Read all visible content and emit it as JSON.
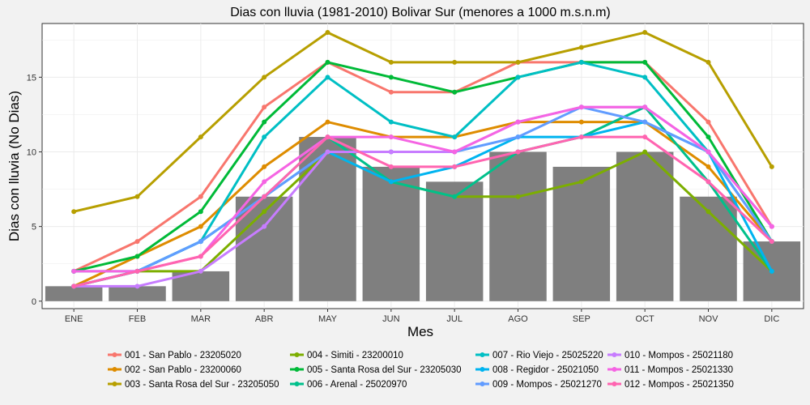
{
  "chart_data": {
    "type": "bar",
    "title": "Dias con lluvia (1981-2010) Bolivar Sur (menores a 1000 m.s.n.m)",
    "xlabel": "Mes",
    "ylabel": "Dias con lluvia (No Dias)",
    "categories": [
      "ENE",
      "FEB",
      "MAR",
      "ABR",
      "MAY",
      "JUN",
      "JUL",
      "AGO",
      "SEP",
      "OCT",
      "NOV",
      "DIC"
    ],
    "ylim": [
      -0.5,
      18.6
    ],
    "yticks": [
      0,
      5,
      10,
      15
    ],
    "bar_values": [
      1,
      1,
      2,
      7,
      11,
      9,
      8,
      10,
      9,
      10,
      7,
      4
    ],
    "bar_color": "#7f7f7f",
    "grid": true,
    "legend_position": "bottom",
    "series": [
      {
        "name": "001 - San Pablo - 23205020",
        "color": "#F8766D",
        "values": [
          2,
          4,
          7,
          13,
          16,
          14,
          14,
          16,
          16,
          16,
          12,
          5
        ]
      },
      {
        "name": "002 - San Pablo - 23200060",
        "color": "#DE8C00",
        "values": [
          1,
          3,
          5,
          9,
          12,
          11,
          11,
          12,
          12,
          12,
          9,
          4
        ]
      },
      {
        "name": "003 - Santa Rosa del Sur - 23205050",
        "color": "#B79F00",
        "values": [
          6,
          7,
          11,
          15,
          18,
          16,
          16,
          16,
          17,
          18,
          16,
          9
        ]
      },
      {
        "name": "004 - Simiti - 23200010",
        "color": "#7CAE00",
        "values": [
          1,
          2,
          2,
          6,
          10,
          8,
          7,
          7,
          8,
          10,
          6,
          2
        ]
      },
      {
        "name": "005 - Santa Rosa del Sur - 23205030",
        "color": "#00BA38",
        "values": [
          2,
          3,
          6,
          12,
          16,
          15,
          14,
          15,
          16,
          16,
          11,
          4
        ]
      },
      {
        "name": "006 - Arenal - 25020970",
        "color": "#00C08B",
        "values": [
          1,
          2,
          4,
          7,
          11,
          8,
          7,
          10,
          11,
          13,
          8,
          2
        ]
      },
      {
        "name": "007 - Rio Viejo - 25025220",
        "color": "#00BFC4",
        "values": [
          2,
          2,
          4,
          11,
          15,
          12,
          11,
          15,
          16,
          15,
          10,
          4
        ]
      },
      {
        "name": "008 - Regidor - 25021050",
        "color": "#00B4F0",
        "values": [
          1,
          2,
          4,
          7,
          10,
          8,
          9,
          11,
          11,
          12,
          10,
          2
        ]
      },
      {
        "name": "009 - Mompos - 25021270",
        "color": "#619CFF",
        "values": [
          1,
          2,
          4,
          7,
          10,
          10,
          10,
          11,
          13,
          12,
          10,
          4
        ]
      },
      {
        "name": "010 - Mompos - 25021180",
        "color": "#C77CFF",
        "values": [
          1,
          1,
          2,
          5,
          10,
          10,
          10,
          12,
          13,
          13,
          10,
          5
        ]
      },
      {
        "name": "011 - Mompos - 25021330",
        "color": "#F564E3",
        "values": [
          2,
          2,
          3,
          8,
          11,
          11,
          10,
          12,
          13,
          13,
          10,
          5
        ]
      },
      {
        "name": "012 - Mompos - 25021350",
        "color": "#FF64B0",
        "values": [
          1,
          2,
          3,
          7,
          11,
          9,
          9,
          10,
          11,
          11,
          8,
          4
        ]
      }
    ]
  }
}
